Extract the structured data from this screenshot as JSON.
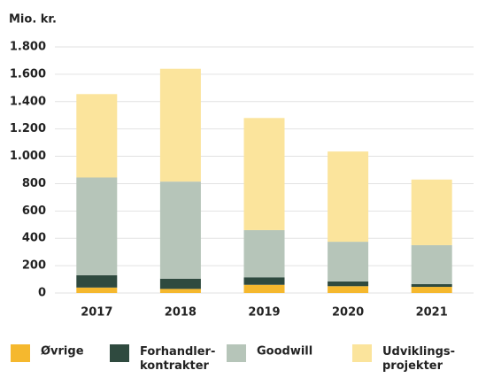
{
  "chart_data": {
    "type": "stacked_bar",
    "y_label": "Mio. kr.",
    "categories": [
      "2017",
      "2018",
      "2019",
      "2020",
      "2021"
    ],
    "series": [
      {
        "name": "Øvrige",
        "color": "#f5b82e",
        "values": [
          40,
          30,
          60,
          50,
          45
        ]
      },
      {
        "name": "Forhandler-\nkontrakter",
        "color": "#2f4a3f",
        "values": [
          90,
          75,
          55,
          35,
          20
        ]
      },
      {
        "name": "Goodwill",
        "color": "#b6c5b9",
        "values": [
          715,
          710,
          345,
          290,
          285
        ]
      },
      {
        "name": "Udviklings-\nprojekter",
        "color": "#fbe49c",
        "values": [
          610,
          825,
          820,
          660,
          480
        ]
      }
    ],
    "ylim": [
      0,
      1800
    ],
    "yticks": [
      0,
      200,
      400,
      600,
      800,
      {
        "value": 1000,
        "label": "1.000"
      },
      {
        "value": 1200,
        "label": "1.200"
      },
      {
        "value": 1400,
        "label": "1.400"
      },
      {
        "value": 1600,
        "label": "1.600"
      },
      {
        "value": 1800,
        "label": "1.800"
      }
    ],
    "grid": true
  }
}
